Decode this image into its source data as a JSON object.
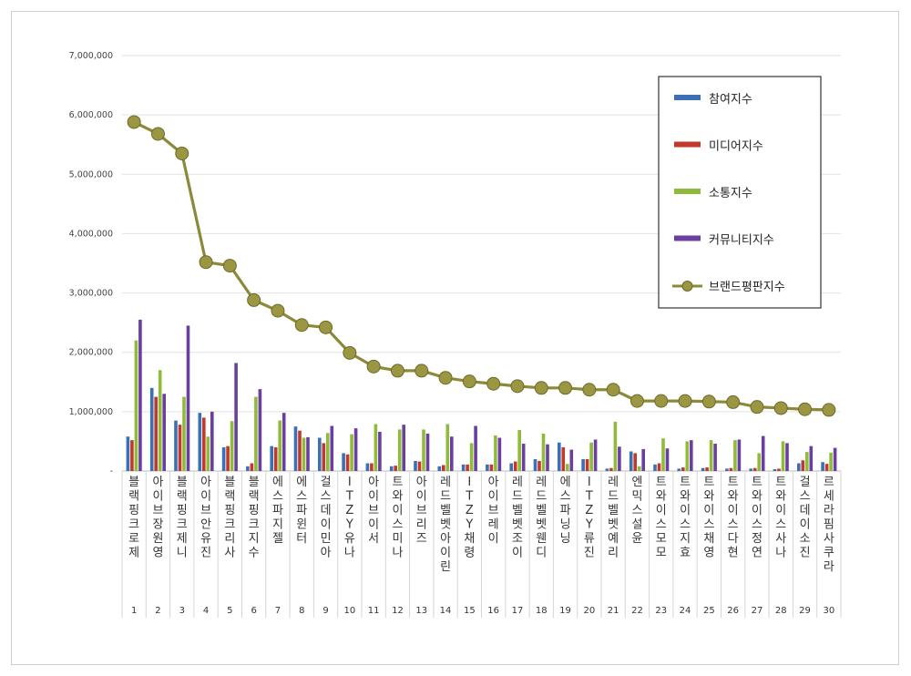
{
  "chart_data": {
    "type": "bar",
    "ylim": [
      0,
      7000000
    ],
    "y_ticks": [
      "-",
      "1,000,000",
      "2,000,000",
      "3,000,000",
      "4,000,000",
      "5,000,000",
      "6,000,000",
      "7,000,000"
    ],
    "grid": true,
    "legend_position": "top-right",
    "ranks": [
      "1",
      "2",
      "3",
      "4",
      "5",
      "6",
      "7",
      "8",
      "9",
      "10",
      "11",
      "12",
      "13",
      "14",
      "15",
      "16",
      "17",
      "18",
      "19",
      "20",
      "21",
      "22",
      "23",
      "24",
      "25",
      "26",
      "27",
      "28",
      "29",
      "30"
    ],
    "categories": [
      "블랙핑크로제",
      "아이브장원영",
      "블랙핑크제니",
      "아이브안유진",
      "블랙핑크리사",
      "블랙핑크지수",
      "에스파지젤",
      "에스파윈터",
      "걸스데이민아",
      "ITZY유나",
      "아이브이서",
      "트와이스미나",
      "아이브리즈",
      "레드벨벳아이린",
      "ITZY채령",
      "아이브레이",
      "레드벨벳조이",
      "레드벨벳웬디",
      "에스파닝닝",
      "ITZY류진",
      "레드벨벳예리",
      "엔믹스설윤",
      "트와이스모모",
      "트와이스지효",
      "트와이스채영",
      "트와이스다현",
      "트와이스정연",
      "트와이스사나",
      "걸스데이소진",
      "르세라핌사쿠라"
    ],
    "series": [
      {
        "name": "참여지수",
        "color": "#3b6fb6",
        "type": "bar",
        "values": [
          580000,
          1400000,
          850000,
          980000,
          400000,
          80000,
          420000,
          750000,
          560000,
          300000,
          130000,
          80000,
          170000,
          80000,
          110000,
          110000,
          130000,
          200000,
          480000,
          200000,
          40000,
          330000,
          110000,
          40000,
          50000,
          40000,
          40000,
          30000,
          130000,
          150000
        ]
      },
      {
        "name": "미디어지수",
        "color": "#c0392b",
        "type": "bar",
        "values": [
          520000,
          1250000,
          780000,
          900000,
          420000,
          130000,
          400000,
          680000,
          470000,
          280000,
          130000,
          90000,
          160000,
          100000,
          110000,
          110000,
          160000,
          170000,
          400000,
          200000,
          50000,
          300000,
          130000,
          60000,
          60000,
          50000,
          50000,
          40000,
          180000,
          120000
        ]
      },
      {
        "name": "소통지수",
        "color": "#8fba3a",
        "type": "bar",
        "values": [
          2200000,
          1700000,
          1250000,
          580000,
          840000,
          1250000,
          850000,
          560000,
          640000,
          620000,
          790000,
          700000,
          700000,
          790000,
          470000,
          600000,
          690000,
          630000,
          120000,
          480000,
          830000,
          80000,
          550000,
          500000,
          520000,
          520000,
          300000,
          500000,
          320000,
          310000
        ]
      },
      {
        "name": "커뮤니티지수",
        "color": "#6a3fa0",
        "type": "bar",
        "values": [
          2550000,
          1300000,
          2450000,
          1000000,
          1820000,
          1380000,
          980000,
          570000,
          760000,
          720000,
          660000,
          780000,
          630000,
          580000,
          760000,
          560000,
          460000,
          450000,
          360000,
          530000,
          410000,
          370000,
          380000,
          520000,
          460000,
          530000,
          590000,
          470000,
          420000,
          390000
        ]
      },
      {
        "name": "브랜드평판지수",
        "color": "#8c8a3a",
        "type": "line",
        "values": [
          5880000,
          5680000,
          5350000,
          3520000,
          3460000,
          2880000,
          2700000,
          2460000,
          2420000,
          1990000,
          1760000,
          1690000,
          1690000,
          1570000,
          1510000,
          1470000,
          1430000,
          1400000,
          1400000,
          1370000,
          1370000,
          1180000,
          1180000,
          1180000,
          1170000,
          1160000,
          1080000,
          1060000,
          1040000,
          1030000
        ]
      }
    ]
  }
}
